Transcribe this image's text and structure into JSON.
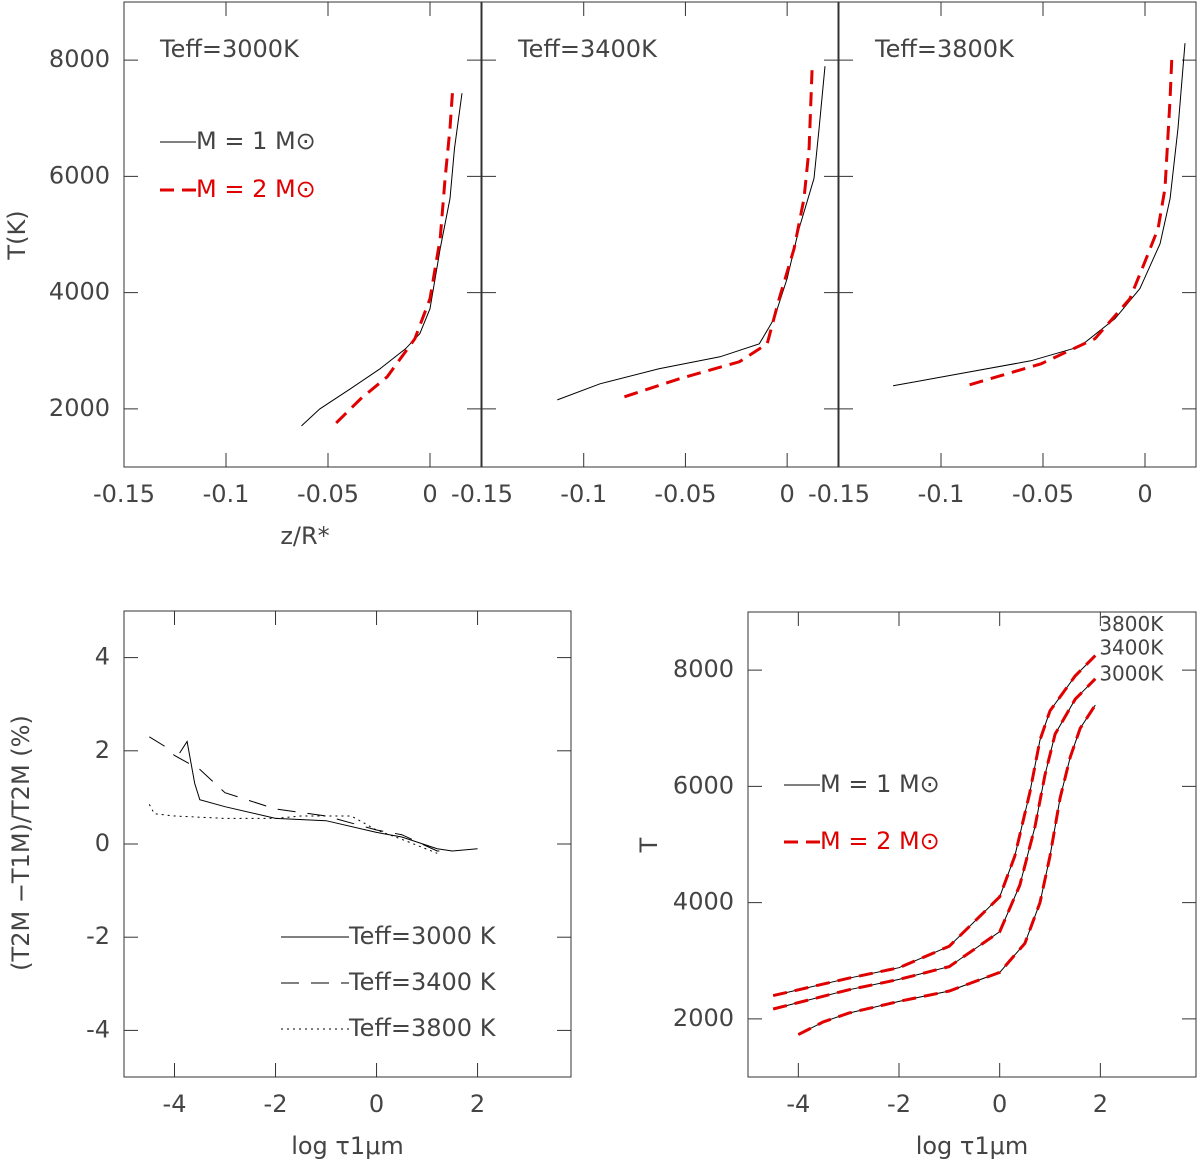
{
  "chart_data": [
    {
      "type": "line",
      "title": "Teff=3000K",
      "ylabel": "T(K)",
      "xlabel": "z/R*",
      "xlim": [
        -0.15,
        0.025
      ],
      "xticks": [
        -0.15,
        -0.1,
        -0.05,
        0
      ],
      "ylim": [
        1000,
        9000
      ],
      "yticks": [
        2000,
        4000,
        6000,
        8000
      ],
      "ytick_labels": true,
      "legend_loc": "upper left",
      "legend": [
        {
          "name": "M = 1 M⊙",
          "color": "#000000",
          "style": "solid"
        },
        {
          "name": "M = 2 M⊙",
          "color": "#e00000",
          "style": "dashed"
        }
      ],
      "series": [
        {
          "color": "#000000",
          "style": "solid",
          "x": [
            -0.063,
            -0.054,
            -0.039,
            -0.0245,
            -0.012,
            -0.005,
            0,
            0.005,
            0.0098,
            0.012,
            0.0157
          ],
          "values": [
            1707,
            2000,
            2345,
            2690,
            3034,
            3293,
            3724,
            4758,
            5620,
            6483,
            7431
          ]
        },
        {
          "color": "#e00000",
          "style": "dashed",
          "x": [
            -0.046,
            -0.034,
            -0.021,
            -0.0074,
            0,
            0.005,
            0.0074,
            0.0098,
            0.011
          ],
          "values": [
            1759,
            2172,
            2552,
            3207,
            3896,
            4930,
            5965,
            6827,
            7431
          ]
        }
      ]
    },
    {
      "type": "line",
      "title": "Teff=3400K",
      "xlim": [
        -0.15,
        0.025
      ],
      "xticks": [
        -0.15,
        -0.1,
        -0.05,
        0
      ],
      "ylim": [
        1000,
        9000
      ],
      "yticks": [
        2000,
        4000,
        6000,
        8000
      ],
      "ytick_labels": false,
      "series": [
        {
          "color": "#000000",
          "style": "solid",
          "x": [
            -0.113,
            -0.092,
            -0.063,
            -0.033,
            -0.0137,
            -0.0064,
            0,
            0.0059,
            0.0132,
            0.0157,
            0.0186
          ],
          "values": [
            2155,
            2431,
            2690,
            2896,
            3120,
            3552,
            4241,
            5103,
            5965,
            6827,
            7896
          ]
        },
        {
          "color": "#e00000",
          "style": "dashed",
          "x": [
            -0.08,
            -0.053,
            -0.0235,
            -0.0098,
            -0.0039,
            0.0034,
            0.0083,
            0.0108,
            0.0123
          ],
          "values": [
            2207,
            2517,
            2810,
            3120,
            3896,
            4758,
            5620,
            6483,
            7896
          ]
        }
      ]
    },
    {
      "type": "line",
      "title": "Teff=3800K",
      "xlim": [
        -0.15,
        0.025
      ],
      "xticks": [
        -0.15,
        -0.1,
        -0.05,
        0
      ],
      "ylim": [
        1000,
        9000
      ],
      "yticks": [
        2000,
        4000,
        6000,
        8000
      ],
      "ytick_labels": false,
      "series": [
        {
          "color": "#000000",
          "style": "solid",
          "x": [
            -0.1235,
            -0.091,
            -0.056,
            -0.032,
            -0.0147,
            -0.0025,
            0.0074,
            0.0123,
            0.0162,
            0.0196
          ],
          "values": [
            2397,
            2603,
            2827,
            3069,
            3552,
            4069,
            4844,
            5620,
            6827,
            8292
          ]
        },
        {
          "color": "#e00000",
          "style": "dashed",
          "x": [
            -0.086,
            -0.051,
            -0.0245,
            -0.0074,
            0,
            0.0064,
            0.0098,
            0.0123,
            0.0132
          ],
          "values": [
            2414,
            2776,
            3207,
            3896,
            4534,
            5103,
            5793,
            7344,
            8068
          ]
        }
      ]
    },
    {
      "type": "line",
      "ylabel": "(T2M −T1M)/T2M (%)",
      "xlabel": "log τ1μm",
      "xlim": [
        -5,
        3.85
      ],
      "xticks": [
        -4,
        -2,
        0,
        2
      ],
      "ylim": [
        -5,
        5
      ],
      "yticks": [
        -4,
        -2,
        0,
        2,
        4
      ],
      "ytick_labels": true,
      "legend_loc": "lower right",
      "legend": [
        {
          "name": "Teff=3000 K",
          "color": "#000000",
          "style": "solid"
        },
        {
          "name": "Teff=3400 K",
          "color": "#000000",
          "style": "longdash"
        },
        {
          "name": "Teff=3800 K",
          "color": "#000000",
          "style": "dotted"
        }
      ],
      "series": [
        {
          "color": "#000000",
          "style": "solid",
          "x": [
            -3.9,
            -3.75,
            -3.6,
            -3.5,
            -3.0,
            -2.0,
            -1.0,
            0,
            0.5,
            1.2,
            1.5,
            2
          ],
          "values": [
            1.95,
            2.2,
            1.3,
            0.95,
            0.8,
            0.55,
            0.5,
            0.25,
            0.15,
            -0.1,
            -0.15,
            -0.1
          ]
        },
        {
          "color": "#000000",
          "style": "longdash",
          "x": [
            -4.5,
            -4.2,
            -4.0,
            -3.5,
            -3.0,
            -2.0,
            -1.0,
            0,
            0.5,
            1.2,
            1.5
          ],
          "values": [
            2.3,
            2.1,
            1.9,
            1.6,
            1.1,
            0.75,
            0.6,
            0.3,
            0.2,
            -0.15,
            -0.15
          ]
        },
        {
          "color": "#000000",
          "style": "dotted",
          "x": [
            -4.5,
            -4.4,
            -4.0,
            -3.0,
            -2.0,
            -1.5,
            -0.5,
            0,
            0.5,
            1.2
          ],
          "values": [
            0.85,
            0.65,
            0.6,
            0.55,
            0.55,
            0.6,
            0.6,
            0.3,
            0.1,
            -0.2
          ]
        }
      ]
    },
    {
      "type": "line",
      "ylabel": "T",
      "xlabel": "log τ1μm",
      "xlim": [
        -5,
        3.9
      ],
      "xticks": [
        -4,
        -2,
        0,
        2
      ],
      "ylim": [
        1000,
        9000
      ],
      "yticks": [
        2000,
        4000,
        6000,
        8000
      ],
      "ytick_labels": true,
      "legend_loc": "upper left",
      "legend": [
        {
          "name": "M = 1 M⊙",
          "color": "#000000",
          "style": "solid"
        },
        {
          "name": "M = 2 M⊙",
          "color": "#e00000",
          "style": "dashed"
        }
      ],
      "series": [
        {
          "color": "#000000",
          "style": "solid",
          "label": "3000K",
          "x": [
            -4.0,
            -3.5,
            -3,
            -2,
            -1,
            0,
            0.5,
            0.8,
            1.0,
            1.2,
            1.4,
            1.6,
            1.9
          ],
          "values": [
            1730,
            1950,
            2100,
            2300,
            2480,
            2800,
            3300,
            4000,
            4800,
            5800,
            6500,
            7000,
            7400
          ]
        },
        {
          "color": "#e00000",
          "style": "dashed",
          "x": [
            -4.0,
            -3.5,
            -3,
            -2,
            -1,
            0,
            0.5,
            0.8,
            1.0,
            1.2,
            1.4,
            1.6,
            1.9
          ],
          "values": [
            1730,
            1950,
            2100,
            2300,
            2480,
            2800,
            3300,
            4000,
            4800,
            5800,
            6500,
            7000,
            7400
          ]
        },
        {
          "color": "#000000",
          "style": "solid",
          "label": "3400K",
          "x": [
            -4.5,
            -3,
            -2,
            -1,
            0,
            0.4,
            0.7,
            0.9,
            1.1,
            1.5,
            1.9
          ],
          "values": [
            2170,
            2500,
            2680,
            2900,
            3500,
            4300,
            5300,
            6200,
            6900,
            7500,
            7850
          ]
        },
        {
          "color": "#e00000",
          "style": "dashed",
          "x": [
            -4.5,
            -3,
            -2,
            -1,
            0,
            0.4,
            0.7,
            0.9,
            1.1,
            1.5,
            1.9
          ],
          "values": [
            2170,
            2500,
            2680,
            2900,
            3500,
            4300,
            5300,
            6200,
            6900,
            7500,
            7850
          ]
        },
        {
          "color": "#000000",
          "style": "solid",
          "label": "3800K",
          "x": [
            -4.5,
            -3,
            -2,
            -1,
            0,
            0.3,
            0.6,
            0.8,
            1.0,
            1.5,
            1.9
          ],
          "values": [
            2400,
            2700,
            2880,
            3250,
            4100,
            4800,
            5900,
            6800,
            7300,
            7900,
            8250
          ]
        },
        {
          "color": "#e00000",
          "style": "dashed",
          "x": [
            -4.5,
            -3,
            -2,
            -1,
            0,
            0.3,
            0.6,
            0.8,
            1.0,
            1.5,
            1.9
          ],
          "values": [
            2400,
            2700,
            2880,
            3250,
            4100,
            4800,
            5900,
            6800,
            7300,
            7900,
            8250
          ]
        }
      ]
    }
  ]
}
